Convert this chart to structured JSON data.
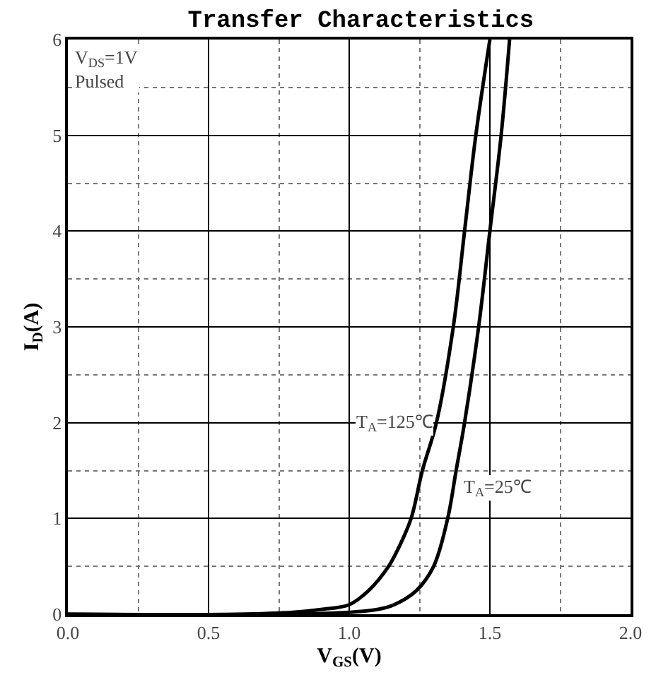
{
  "chart_data": {
    "type": "line",
    "title": "Transfer Characteristics",
    "xlabel": "V$_{GS}$(V)",
    "ylabel": "I$_{D}$(A)",
    "xlim": [
      0,
      2
    ],
    "ylim": [
      0,
      6
    ],
    "xticks": [
      {
        "value": 0,
        "label": "0.0"
      },
      {
        "value": 0.5,
        "label": "0.5"
      },
      {
        "value": 1,
        "label": "1.0"
      },
      {
        "value": 1.5,
        "label": "1.5"
      },
      {
        "value": 2,
        "label": "2.0"
      }
    ],
    "yticks": [
      0,
      1,
      2,
      3,
      4,
      5,
      6
    ],
    "grid": true,
    "legend": false,
    "marker": "none",
    "line_style": "solid",
    "series": [
      {
        "name": "T$_{A}$=125℃",
        "color": "#000000",
        "x": [
          0,
          0.6,
          0.8,
          0.9,
          1.0,
          1.07,
          1.14,
          1.18,
          1.22,
          1.26,
          1.31,
          1.37,
          1.41,
          1.45,
          1.5
        ],
        "values": [
          0,
          0,
          0.02,
          0.05,
          0.1,
          0.25,
          0.5,
          0.72,
          1,
          1.5,
          2,
          3,
          4,
          5,
          6
        ]
      },
      {
        "name": "T$_{A}$=25℃",
        "color": "#000000",
        "x": [
          0,
          0.8,
          1.0,
          1.1,
          1.16,
          1.24,
          1.3,
          1.35,
          1.38,
          1.41,
          1.46,
          1.5,
          1.54,
          1.57
        ],
        "values": [
          0,
          0,
          0.02,
          0.05,
          0.1,
          0.25,
          0.5,
          1,
          1.5,
          2,
          3,
          4,
          5,
          6
        ]
      }
    ],
    "annotations": [
      "V$_{DS}$=1V\nPulsed"
    ]
  }
}
